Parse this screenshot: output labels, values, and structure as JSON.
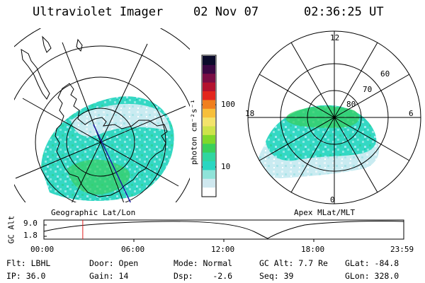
{
  "header": {
    "instrument": "Ultraviolet Imager",
    "date": "02 Nov 07",
    "time": "02:36:25 UT"
  },
  "left_panel": {
    "caption": "Geographic Lat/Lon"
  },
  "right_panel": {
    "caption": "Apex MLat/MLT",
    "mlt_labels": {
      "top": "12",
      "left": "18",
      "right": "6",
      "bottom": "0"
    },
    "lat_labels": [
      "60",
      "70",
      "80"
    ]
  },
  "colorbar": {
    "unit_label": "photon cm⁻²s⁻¹",
    "ticks": [
      "100",
      "10"
    ],
    "colors": [
      "#ffffff",
      "#cfe8ef",
      "#8fe3d9",
      "#29d6c1",
      "#2fd6a0",
      "#39d05a",
      "#7fd82a",
      "#cde34a",
      "#f3e36b",
      "#f7bf3a",
      "#f07f1e",
      "#e3261d",
      "#b3122e",
      "#7a0d44",
      "#3a0742",
      "#0a0a2a"
    ]
  },
  "timeline": {
    "ylabel": "GC Alt",
    "yticks": [
      "9.0",
      "1.8"
    ],
    "xticks": [
      "00:00",
      "06:00",
      "12:00",
      "18:00",
      "23:59"
    ],
    "current_time_fraction": 0.108
  },
  "info": {
    "row1": [
      "Flt: LBHL",
      "Door: Open",
      "Mode: Normal",
      "GC Alt: 7.7 Re",
      "GLat: -84.8"
    ],
    "row2": [
      "IP: 36.0",
      "Gain: 14",
      "Dsp:    -2.6",
      "Seq: 39",
      "GLon: 328.0"
    ]
  }
}
